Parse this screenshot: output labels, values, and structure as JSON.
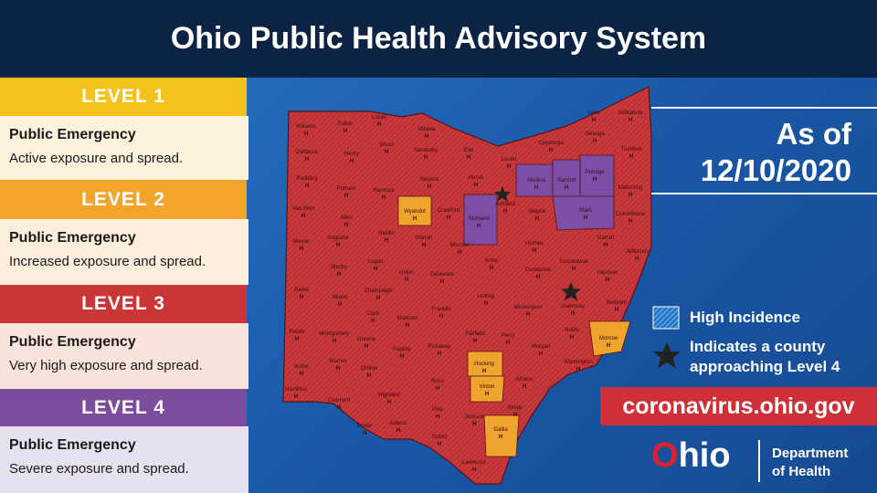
{
  "header": {
    "title": "Ohio Public Health Advisory System"
  },
  "levels": [
    {
      "level": "LEVEL 1",
      "title": "Public Emergency",
      "description": "Active exposure and spread."
    },
    {
      "level": "LEVEL 2",
      "title": "Public Emergency",
      "description": "Increased exposure and spread."
    },
    {
      "level": "LEVEL 3",
      "title": "Public Emergency",
      "description": "Very high exposure and spread."
    },
    {
      "level": "LEVEL 4",
      "title": "Public Emergency",
      "description": "Severe exposure and spread."
    }
  ],
  "date": {
    "prefix": "As of",
    "value": "12/10/2020"
  },
  "legend": [
    {
      "lines": [
        "High Incidence"
      ]
    },
    {
      "lines": [
        "Indicates a county",
        "approaching Level 4"
      ]
    }
  ],
  "website": "coronavirus.ohio.gov",
  "logo": {
    "name": "Ohio",
    "department": [
      "Department",
      "of Health"
    ]
  },
  "map": {
    "marker": "H",
    "counties": [
      "Williams",
      "Fulton",
      "Lucas",
      "Ottawa",
      "Defiance",
      "Henry",
      "Wood",
      "Sandusky",
      "Erie",
      "Lorain",
      "Cuyahoga",
      "Lake",
      "Ashtabula",
      "Geauga",
      "Trumbull",
      "Paulding",
      "Putnam",
      "Hancock",
      "Seneca",
      "Huron",
      "Medina",
      "Summit",
      "Portage",
      "Mahoning",
      "Van Wert",
      "Allen",
      "Wyandot",
      "Crawford",
      "Richland",
      "Ashland",
      "Wayne",
      "Stark",
      "Columbiana",
      "Mercer",
      "Auglaize",
      "Hardin",
      "Marion",
      "Morrow",
      "Holmes",
      "Carroll",
      "Jefferson",
      "Shelby",
      "Logan",
      "Union",
      "Delaware",
      "Knox",
      "Coshocton",
      "Tuscarawas",
      "Harrison",
      "Darke",
      "Miami",
      "Champaign",
      "Licking",
      "Belmont",
      "Clark",
      "Madison",
      "Franklin",
      "Muskingum",
      "Guernsey",
      "Preble",
      "Montgomery",
      "Greene",
      "Fayette",
      "Pickaway",
      "Fairfield",
      "Perry",
      "Morgan",
      "Noble",
      "Monroe",
      "Butler",
      "Warren",
      "Clinton",
      "Hocking",
      "Athens",
      "Washington",
      "Hamilton",
      "Clermont",
      "Highland",
      "Ross",
      "Vinton",
      "Meigs",
      "Brown",
      "Adams",
      "Pike",
      "Jackson",
      "Gallia",
      "Scioto",
      "Lawrence"
    ]
  }
}
